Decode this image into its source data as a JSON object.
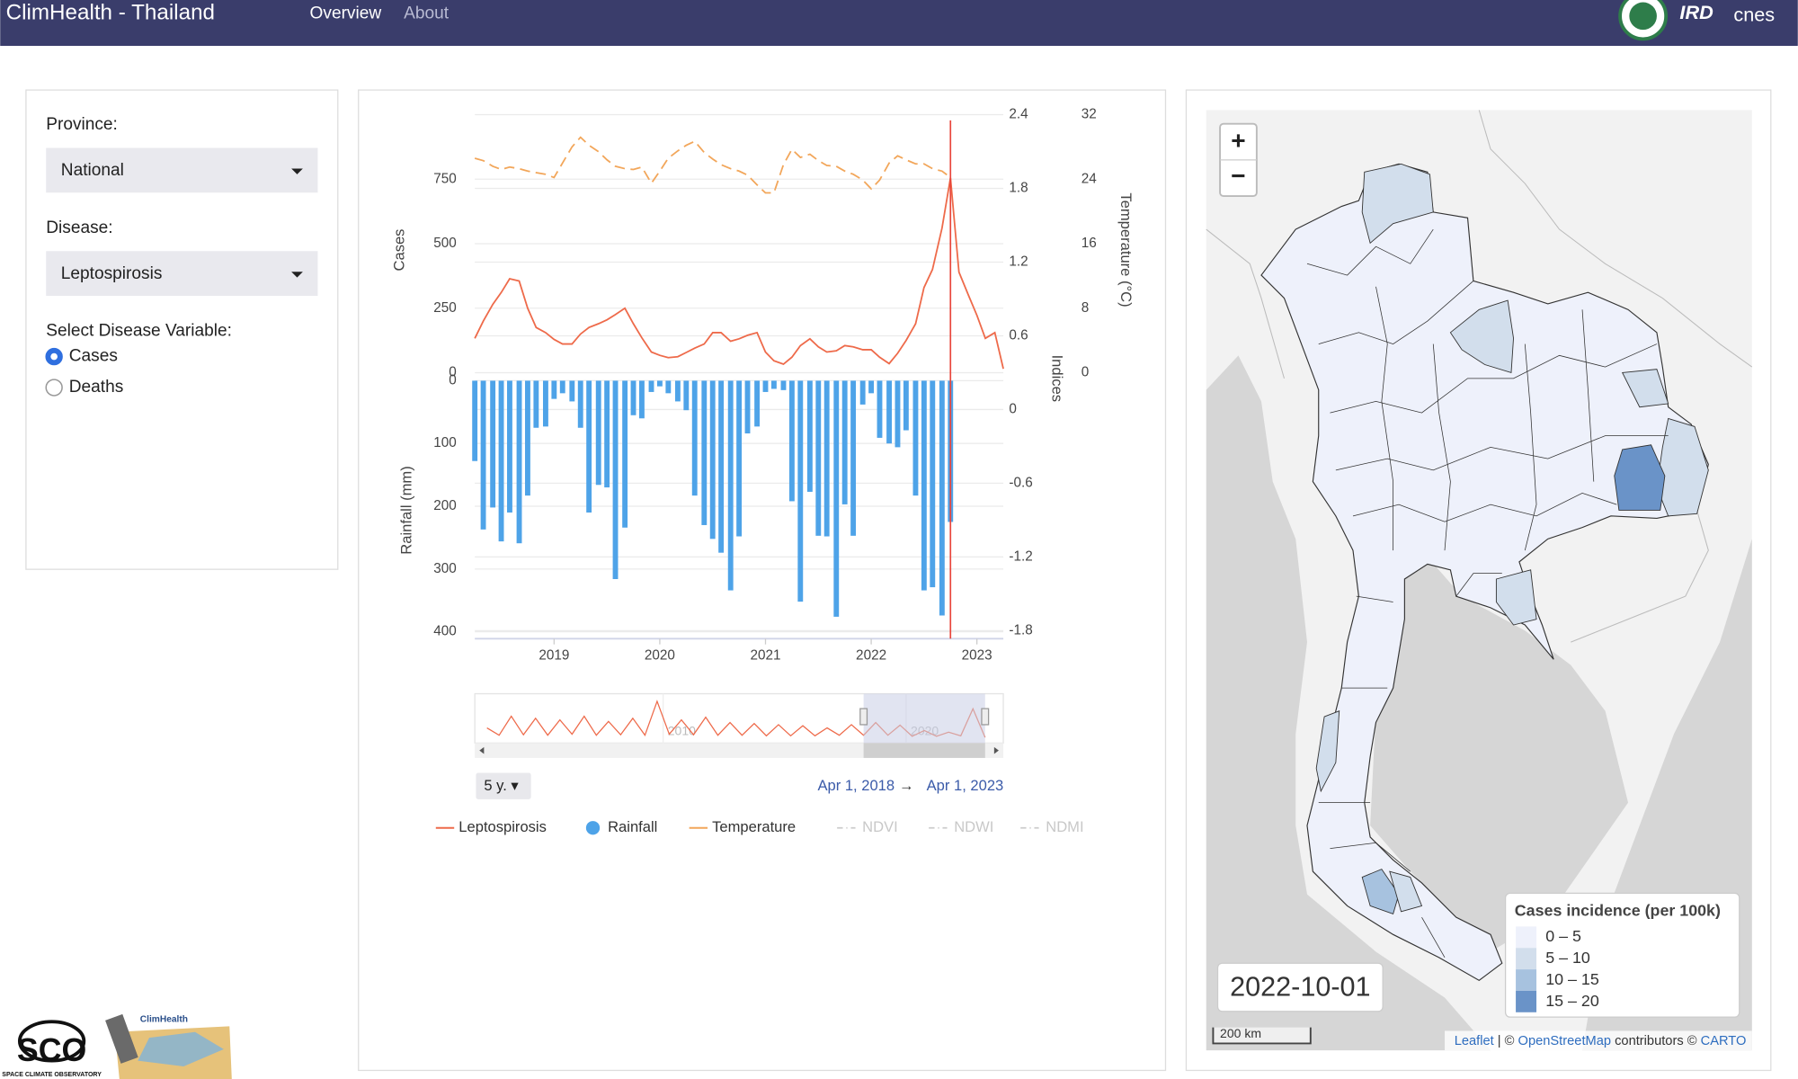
{
  "header": {
    "title": "ClimHealth - Thailand",
    "nav": [
      "Overview",
      "About"
    ],
    "logos": [
      "IRD",
      "cnes"
    ]
  },
  "controls": {
    "province_label": "Province:",
    "province": "National",
    "disease_label": "Disease:",
    "disease": "Leptospirosis",
    "variable_label": "Select Disease Variable:",
    "variable_options": [
      "Cases",
      "Deaths"
    ],
    "selected_variable": "Cases"
  },
  "chart_data": {
    "type": "combo",
    "x": [
      2018.25,
      2018.33,
      2018.42,
      2018.5,
      2018.58,
      2018.67,
      2018.75,
      2018.83,
      2018.92,
      2019,
      2019.08,
      2019.17,
      2019.25,
      2019.33,
      2019.42,
      2019.5,
      2019.58,
      2019.67,
      2019.75,
      2019.83,
      2019.92,
      2020,
      2020.08,
      2020.17,
      2020.25,
      2020.33,
      2020.42,
      2020.5,
      2020.58,
      2020.67,
      2020.75,
      2020.83,
      2020.92,
      2021,
      2021.08,
      2021.17,
      2021.25,
      2021.33,
      2021.42,
      2021.5,
      2021.58,
      2021.67,
      2021.75,
      2021.83,
      2021.92,
      2022,
      2022.08,
      2022.17,
      2022.25,
      2022.33,
      2022.42,
      2022.5,
      2022.58,
      2022.67,
      2022.75,
      2022.83,
      2022.92,
      2023,
      2023.08,
      2023.17,
      2023.25
    ],
    "xlim": [
      2018.25,
      2023.25
    ],
    "xticks": [
      2019,
      2020,
      2021,
      2022,
      2023
    ],
    "series": [
      {
        "name": "Leptospirosis",
        "type": "line",
        "axis": "y",
        "color": "#ee6a4a",
        "values": [
          133,
          200,
          265,
          311,
          364,
          355,
          250,
          175,
          155,
          129,
          111,
          111,
          150,
          175,
          190,
          205,
          225,
          250,
          190,
          135,
          80,
          67,
          58,
          62,
          78,
          95,
          111,
          155,
          155,
          122,
          131,
          145,
          155,
          80,
          46,
          33,
          60,
          105,
          131,
          100,
          80,
          85,
          105,
          100,
          89,
          89,
          60,
          35,
          75,
          125,
          190,
          330,
          400,
          560,
          755,
          390,
          300,
          222,
          133,
          155,
          15
        ]
      },
      {
        "name": "Rainfall",
        "type": "bar",
        "axis": "y3",
        "color": "#4ea3e8",
        "values": [
          128,
          237,
          202,
          256,
          210,
          259,
          183,
          75,
          73,
          29,
          20,
          33,
          75,
          210,
          166,
          170,
          316,
          234,
          55,
          60,
          18,
          9,
          20,
          33,
          47,
          183,
          230,
          252,
          274,
          334,
          248,
          84,
          73,
          18,
          13,
          15,
          192,
          352,
          177,
          247,
          248,
          376,
          197,
          247,
          38,
          20,
          91,
          100,
          106,
          79,
          183,
          334,
          329,
          374,
          225,
          null,
          null,
          null,
          null,
          null,
          null
        ]
      },
      {
        "name": "Temperature",
        "type": "line",
        "dash": true,
        "axis": "y2",
        "color": "#f2a65a",
        "values": [
          26.6,
          26.3,
          25.6,
          25.2,
          25.5,
          25.3,
          25.0,
          24.8,
          24.6,
          24.2,
          26.0,
          28.0,
          29.2,
          28.2,
          27.4,
          26.4,
          25.6,
          25.3,
          25.2,
          25.5,
          23.5,
          25.0,
          26.6,
          27.5,
          28.2,
          28.7,
          27.3,
          26.5,
          25.8,
          25.3,
          25.0,
          24.5,
          23.3,
          22.3,
          22.3,
          25.8,
          27.7,
          26.7,
          27.1,
          26.3,
          25.7,
          25.6,
          25.0,
          24.6,
          23.9,
          22.8,
          23.9,
          26.0,
          26.9,
          26.4,
          25.9,
          25.9,
          25.3,
          25.0,
          24.2,
          null,
          null,
          null,
          null,
          null,
          null
        ]
      }
    ],
    "legend_hidden": [
      "NDVI",
      "NDWI",
      "NDMI"
    ],
    "ylabel": "Cases",
    "ylim": [
      0,
      1000
    ],
    "yticks": [
      0,
      250,
      500,
      750
    ],
    "y2label": "Temperature (°C)",
    "y2lim": [
      0,
      32
    ],
    "y2ticks": [
      0,
      8,
      16,
      24,
      32
    ],
    "y3label": "Rainfall (mm)",
    "y3lim": [
      0,
      400
    ],
    "y3ticks": [
      0,
      100,
      200,
      300,
      400
    ],
    "y3_reversed": true,
    "y4label": "Indices",
    "y4lim": [
      -1.8,
      2.4
    ],
    "y4ticks": [
      -1.8,
      -1.2,
      -0.6,
      0,
      0.6,
      1.2,
      1.8,
      2.4
    ],
    "grid": true,
    "marker_x": 2022.75,
    "marker_color": "#e8443a",
    "range_slider": {
      "x": [
        2002.75,
        2003.25,
        2003.75,
        2004.25,
        2004.75,
        2005.25,
        2005.75,
        2006.25,
        2006.75,
        2007.25,
        2007.75,
        2008.25,
        2008.75,
        2009.25,
        2009.75,
        2010.25,
        2010.75,
        2011.25,
        2011.75,
        2012.25,
        2012.75,
        2013.25,
        2013.75,
        2014.25,
        2014.75,
        2015.25,
        2015.75,
        2016.25,
        2016.75,
        2017.25,
        2017.75,
        2018.25,
        2018.75,
        2019.25,
        2019.75,
        2020.25,
        2020.75,
        2021.25,
        2021.75,
        2022.25,
        2022.75,
        2023.25
      ],
      "values": [
        200,
        60,
        420,
        70,
        380,
        60,
        350,
        80,
        420,
        60,
        320,
        70,
        380,
        60,
        700,
        80,
        350,
        70,
        400,
        60,
        300,
        60,
        280,
        50,
        260,
        50,
        240,
        50,
        200,
        60,
        260,
        60,
        300,
        60,
        250,
        40,
        150,
        40,
        120,
        50,
        560,
        20
      ],
      "xlim": [
        2002.25,
        2024
      ],
      "ylim": [
        0,
        800
      ],
      "xticks": [
        2010,
        2020
      ],
      "window": [
        2018.25,
        2023.25
      ]
    },
    "range_button": "5 y. ▾",
    "range_start": "Apr 1, 2018",
    "range_arrow": "→",
    "range_end": "Apr 1, 2023"
  },
  "map": {
    "zoom_in": "+",
    "zoom_out": "−",
    "date": "2022-10-01",
    "legend_title": "Cases incidence (per 100k)",
    "legend_classes": [
      {
        "label": "0 – 5",
        "min": 0,
        "max": 5,
        "color": "#eef1fb"
      },
      {
        "label": "5 – 10",
        "min": 5,
        "max": 10,
        "color": "#d2deec"
      },
      {
        "label": "10 – 15",
        "min": 10,
        "max": 15,
        "color": "#a7c2df"
      },
      {
        "label": "15 – 20",
        "min": 15,
        "max": 20,
        "color": "#6a93c8"
      }
    ],
    "region_values": [
      2,
      7,
      8,
      8,
      7,
      17,
      7,
      13,
      7,
      7
    ],
    "scale": "200 km",
    "attribution": [
      "Leaflet",
      " | © ",
      "OpenStreetMap",
      " contributors © ",
      "CARTO"
    ]
  },
  "footer_logos": [
    "SCO",
    "SPACE CLIMATE OBSERVATORY",
    "ClimHealth"
  ]
}
